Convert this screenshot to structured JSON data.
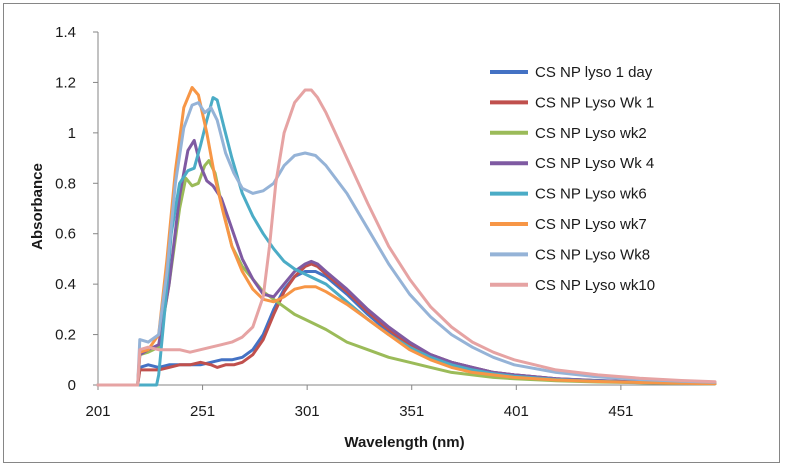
{
  "chart_data": {
    "type": "line",
    "title": "",
    "xlabel": "Wavelength (nm)",
    "ylabel": "Absorbance",
    "xlim": [
      201,
      496
    ],
    "ylim": [
      0,
      1.4
    ],
    "xticks": [
      201,
      251,
      301,
      351,
      401,
      451
    ],
    "yticks": [
      0,
      0.2,
      0.4,
      0.6,
      0.8,
      1,
      1.2,
      1.4
    ],
    "ytick_labels": [
      "0",
      "0.2",
      "0.4",
      "0.6",
      "0.8",
      "1",
      "1.2",
      "1.4"
    ],
    "grid": false,
    "legend_position": "right",
    "series": [
      {
        "name": "CS NP lyso 1 day",
        "color": "#4472C4",
        "points": [
          [
            201,
            0
          ],
          [
            220,
            0
          ],
          [
            221,
            0.07
          ],
          [
            225,
            0.08
          ],
          [
            230,
            0.07
          ],
          [
            235,
            0.08
          ],
          [
            240,
            0.08
          ],
          [
            245,
            0.08
          ],
          [
            250,
            0.08
          ],
          [
            255,
            0.09
          ],
          [
            260,
            0.1
          ],
          [
            265,
            0.1
          ],
          [
            270,
            0.11
          ],
          [
            275,
            0.14
          ],
          [
            280,
            0.2
          ],
          [
            285,
            0.3
          ],
          [
            290,
            0.38
          ],
          [
            295,
            0.43
          ],
          [
            300,
            0.45
          ],
          [
            305,
            0.45
          ],
          [
            310,
            0.43
          ],
          [
            320,
            0.36
          ],
          [
            330,
            0.28
          ],
          [
            340,
            0.21
          ],
          [
            350,
            0.16
          ],
          [
            360,
            0.12
          ],
          [
            370,
            0.09
          ],
          [
            380,
            0.07
          ],
          [
            390,
            0.05
          ],
          [
            400,
            0.04
          ],
          [
            420,
            0.025
          ],
          [
            440,
            0.018
          ],
          [
            460,
            0.012
          ],
          [
            480,
            0.008
          ],
          [
            496,
            0.006
          ]
        ]
      },
      {
        "name": "CS NP Lyso Wk 1",
        "color": "#C0504D",
        "points": [
          [
            201,
            0
          ],
          [
            220,
            0
          ],
          [
            221,
            0.06
          ],
          [
            225,
            0.06
          ],
          [
            230,
            0.06
          ],
          [
            235,
            0.07
          ],
          [
            240,
            0.08
          ],
          [
            245,
            0.08
          ],
          [
            250,
            0.09
          ],
          [
            255,
            0.08
          ],
          [
            258,
            0.07
          ],
          [
            262,
            0.08
          ],
          [
            266,
            0.08
          ],
          [
            270,
            0.09
          ],
          [
            275,
            0.12
          ],
          [
            280,
            0.18
          ],
          [
            285,
            0.28
          ],
          [
            290,
            0.37
          ],
          [
            295,
            0.43
          ],
          [
            300,
            0.47
          ],
          [
            303,
            0.48
          ],
          [
            306,
            0.47
          ],
          [
            310,
            0.44
          ],
          [
            320,
            0.37
          ],
          [
            330,
            0.29
          ],
          [
            340,
            0.22
          ],
          [
            350,
            0.16
          ],
          [
            360,
            0.12
          ],
          [
            370,
            0.09
          ],
          [
            380,
            0.07
          ],
          [
            390,
            0.05
          ],
          [
            400,
            0.04
          ],
          [
            420,
            0.025
          ],
          [
            440,
            0.017
          ],
          [
            460,
            0.012
          ],
          [
            480,
            0.008
          ],
          [
            496,
            0.006
          ]
        ]
      },
      {
        "name": "CS NP Lyso wk2",
        "color": "#9BBB59",
        "points": [
          [
            201,
            0
          ],
          [
            220,
            0
          ],
          [
            221,
            0.12
          ],
          [
            225,
            0.13
          ],
          [
            230,
            0.15
          ],
          [
            235,
            0.4
          ],
          [
            240,
            0.7
          ],
          [
            243,
            0.82
          ],
          [
            246,
            0.79
          ],
          [
            249,
            0.8
          ],
          [
            252,
            0.87
          ],
          [
            254,
            0.89
          ],
          [
            257,
            0.84
          ],
          [
            260,
            0.72
          ],
          [
            265,
            0.55
          ],
          [
            270,
            0.47
          ],
          [
            275,
            0.42
          ],
          [
            280,
            0.37
          ],
          [
            285,
            0.34
          ],
          [
            290,
            0.31
          ],
          [
            295,
            0.28
          ],
          [
            300,
            0.26
          ],
          [
            310,
            0.22
          ],
          [
            320,
            0.17
          ],
          [
            330,
            0.14
          ],
          [
            340,
            0.11
          ],
          [
            350,
            0.09
          ],
          [
            360,
            0.07
          ],
          [
            370,
            0.05
          ],
          [
            380,
            0.04
          ],
          [
            390,
            0.03
          ],
          [
            400,
            0.025
          ],
          [
            420,
            0.017
          ],
          [
            440,
            0.012
          ],
          [
            460,
            0.009
          ],
          [
            480,
            0.006
          ],
          [
            496,
            0.005
          ]
        ]
      },
      {
        "name": "CS NP Lyso Wk 4",
        "color": "#7F5AA2",
        "points": [
          [
            201,
            0
          ],
          [
            220,
            0
          ],
          [
            221,
            0.12
          ],
          [
            225,
            0.14
          ],
          [
            230,
            0.16
          ],
          [
            235,
            0.4
          ],
          [
            240,
            0.75
          ],
          [
            244,
            0.93
          ],
          [
            247,
            0.97
          ],
          [
            250,
            0.87
          ],
          [
            253,
            0.81
          ],
          [
            256,
            0.79
          ],
          [
            260,
            0.74
          ],
          [
            265,
            0.62
          ],
          [
            270,
            0.5
          ],
          [
            275,
            0.42
          ],
          [
            280,
            0.36
          ],
          [
            285,
            0.35
          ],
          [
            290,
            0.4
          ],
          [
            295,
            0.45
          ],
          [
            300,
            0.48
          ],
          [
            303,
            0.49
          ],
          [
            306,
            0.48
          ],
          [
            310,
            0.45
          ],
          [
            320,
            0.38
          ],
          [
            330,
            0.3
          ],
          [
            340,
            0.23
          ],
          [
            350,
            0.17
          ],
          [
            360,
            0.12
          ],
          [
            370,
            0.09
          ],
          [
            380,
            0.07
          ],
          [
            390,
            0.05
          ],
          [
            400,
            0.04
          ],
          [
            420,
            0.025
          ],
          [
            440,
            0.017
          ],
          [
            460,
            0.012
          ],
          [
            480,
            0.008
          ],
          [
            496,
            0.006
          ]
        ]
      },
      {
        "name": "CS NP Lyso wk6",
        "color": "#4BACC6",
        "points": [
          [
            201,
            0
          ],
          [
            229,
            0
          ],
          [
            230,
            0.04
          ],
          [
            233,
            0.3
          ],
          [
            236,
            0.6
          ],
          [
            240,
            0.8
          ],
          [
            244,
            0.85
          ],
          [
            247,
            0.86
          ],
          [
            250,
            0.95
          ],
          [
            253,
            1.05
          ],
          [
            256,
            1.14
          ],
          [
            258,
            1.13
          ],
          [
            261,
            1.03
          ],
          [
            265,
            0.9
          ],
          [
            270,
            0.76
          ],
          [
            275,
            0.67
          ],
          [
            280,
            0.6
          ],
          [
            285,
            0.54
          ],
          [
            290,
            0.49
          ],
          [
            295,
            0.46
          ],
          [
            300,
            0.44
          ],
          [
            305,
            0.42
          ],
          [
            310,
            0.4
          ],
          [
            320,
            0.33
          ],
          [
            330,
            0.26
          ],
          [
            340,
            0.2
          ],
          [
            350,
            0.15
          ],
          [
            360,
            0.11
          ],
          [
            370,
            0.08
          ],
          [
            380,
            0.06
          ],
          [
            390,
            0.045
          ],
          [
            400,
            0.035
          ],
          [
            420,
            0.022
          ],
          [
            440,
            0.015
          ],
          [
            460,
            0.01
          ],
          [
            480,
            0.007
          ],
          [
            496,
            0.005
          ]
        ]
      },
      {
        "name": "CS NP Lyso wk7",
        "color": "#F79646",
        "points": [
          [
            201,
            0
          ],
          [
            220,
            0
          ],
          [
            221,
            0.13
          ],
          [
            225,
            0.14
          ],
          [
            230,
            0.2
          ],
          [
            234,
            0.5
          ],
          [
            238,
            0.85
          ],
          [
            242,
            1.1
          ],
          [
            246,
            1.18
          ],
          [
            249,
            1.15
          ],
          [
            253,
            1.0
          ],
          [
            257,
            0.82
          ],
          [
            261,
            0.68
          ],
          [
            265,
            0.55
          ],
          [
            270,
            0.45
          ],
          [
            275,
            0.38
          ],
          [
            280,
            0.34
          ],
          [
            285,
            0.33
          ],
          [
            290,
            0.35
          ],
          [
            295,
            0.38
          ],
          [
            300,
            0.39
          ],
          [
            305,
            0.39
          ],
          [
            310,
            0.37
          ],
          [
            320,
            0.32
          ],
          [
            330,
            0.26
          ],
          [
            340,
            0.2
          ],
          [
            350,
            0.14
          ],
          [
            360,
            0.1
          ],
          [
            370,
            0.07
          ],
          [
            380,
            0.05
          ],
          [
            390,
            0.04
          ],
          [
            400,
            0.03
          ],
          [
            420,
            0.02
          ],
          [
            440,
            0.014
          ],
          [
            460,
            0.01
          ],
          [
            480,
            0.007
          ],
          [
            496,
            0.005
          ]
        ]
      },
      {
        "name": "CS NP Lyso Wk8",
        "color": "#95B3D7",
        "points": [
          [
            201,
            0
          ],
          [
            220,
            0
          ],
          [
            221,
            0.18
          ],
          [
            225,
            0.17
          ],
          [
            230,
            0.2
          ],
          [
            234,
            0.45
          ],
          [
            238,
            0.8
          ],
          [
            242,
            1.02
          ],
          [
            246,
            1.11
          ],
          [
            249,
            1.12
          ],
          [
            252,
            1.08
          ],
          [
            255,
            1.1
          ],
          [
            258,
            1.05
          ],
          [
            262,
            0.92
          ],
          [
            266,
            0.84
          ],
          [
            270,
            0.78
          ],
          [
            275,
            0.76
          ],
          [
            280,
            0.77
          ],
          [
            285,
            0.8
          ],
          [
            290,
            0.87
          ],
          [
            295,
            0.91
          ],
          [
            300,
            0.92
          ],
          [
            305,
            0.91
          ],
          [
            310,
            0.87
          ],
          [
            320,
            0.76
          ],
          [
            330,
            0.62
          ],
          [
            340,
            0.48
          ],
          [
            350,
            0.36
          ],
          [
            360,
            0.27
          ],
          [
            370,
            0.2
          ],
          [
            380,
            0.15
          ],
          [
            390,
            0.11
          ],
          [
            400,
            0.08
          ],
          [
            420,
            0.05
          ],
          [
            440,
            0.032
          ],
          [
            460,
            0.022
          ],
          [
            480,
            0.015
          ],
          [
            496,
            0.011
          ]
        ]
      },
      {
        "name": "CS NP Lyso wk10",
        "color": "#E6A3A3",
        "points": [
          [
            201,
            0
          ],
          [
            220,
            0
          ],
          [
            221,
            0.14
          ],
          [
            225,
            0.15
          ],
          [
            230,
            0.14
          ],
          [
            235,
            0.14
          ],
          [
            240,
            0.14
          ],
          [
            245,
            0.13
          ],
          [
            250,
            0.14
          ],
          [
            255,
            0.15
          ],
          [
            260,
            0.16
          ],
          [
            265,
            0.17
          ],
          [
            270,
            0.19
          ],
          [
            275,
            0.23
          ],
          [
            280,
            0.35
          ],
          [
            283,
            0.55
          ],
          [
            286,
            0.8
          ],
          [
            290,
            1.0
          ],
          [
            295,
            1.12
          ],
          [
            300,
            1.17
          ],
          [
            303,
            1.17
          ],
          [
            306,
            1.14
          ],
          [
            310,
            1.08
          ],
          [
            320,
            0.9
          ],
          [
            330,
            0.72
          ],
          [
            340,
            0.55
          ],
          [
            350,
            0.42
          ],
          [
            360,
            0.31
          ],
          [
            370,
            0.23
          ],
          [
            380,
            0.17
          ],
          [
            390,
            0.13
          ],
          [
            400,
            0.1
          ],
          [
            420,
            0.06
          ],
          [
            440,
            0.04
          ],
          [
            460,
            0.027
          ],
          [
            480,
            0.018
          ],
          [
            496,
            0.013
          ]
        ]
      }
    ]
  }
}
